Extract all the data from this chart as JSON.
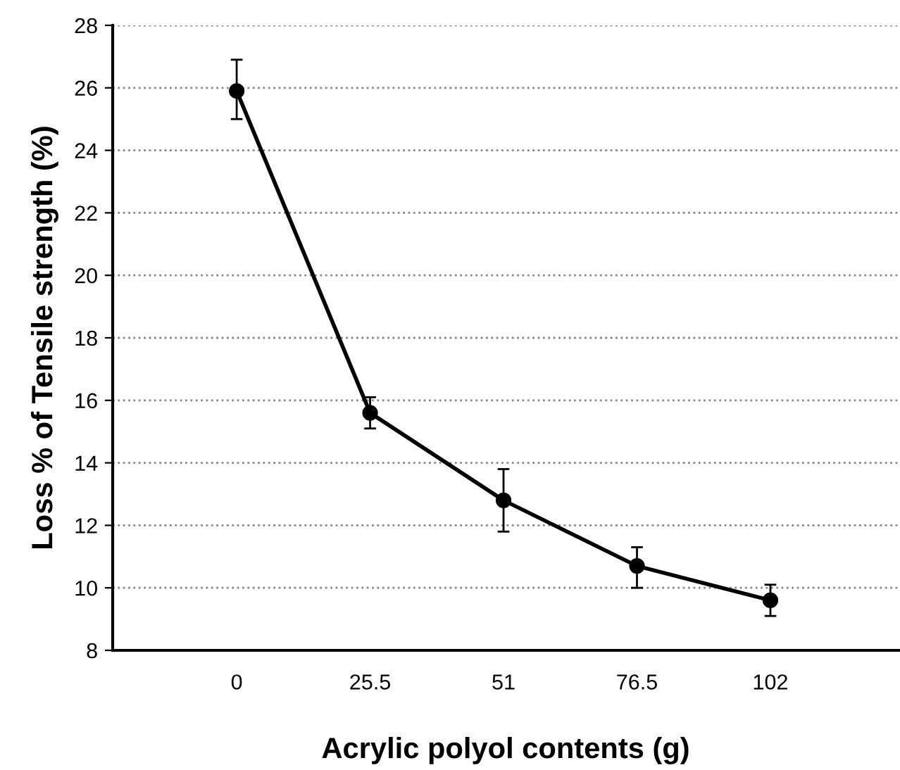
{
  "chart_data": {
    "type": "line",
    "xlabel": "Acrylic polyol contents (g)",
    "ylabel": "Loss % of Tensile strength (%)",
    "x": [
      0,
      25.5,
      51,
      76.5,
      102
    ],
    "values": [
      25.9,
      15.6,
      12.8,
      10.7,
      9.6
    ],
    "errors": [
      [
        25.0,
        26.9
      ],
      [
        15.1,
        16.1
      ],
      [
        11.8,
        13.8
      ],
      [
        10.0,
        11.3
      ],
      [
        9.1,
        10.1
      ]
    ],
    "color": "#000000",
    "marker": "circle",
    "line_style": "solid",
    "xlim": [
      -23.7,
      126.5
    ],
    "xticks": [
      0,
      25.5,
      51,
      76.5,
      102
    ],
    "ylim": [
      8,
      28
    ],
    "yticks": [
      8,
      10,
      12,
      14,
      16,
      18,
      20,
      22,
      24,
      26,
      28
    ],
    "grid": "y"
  }
}
